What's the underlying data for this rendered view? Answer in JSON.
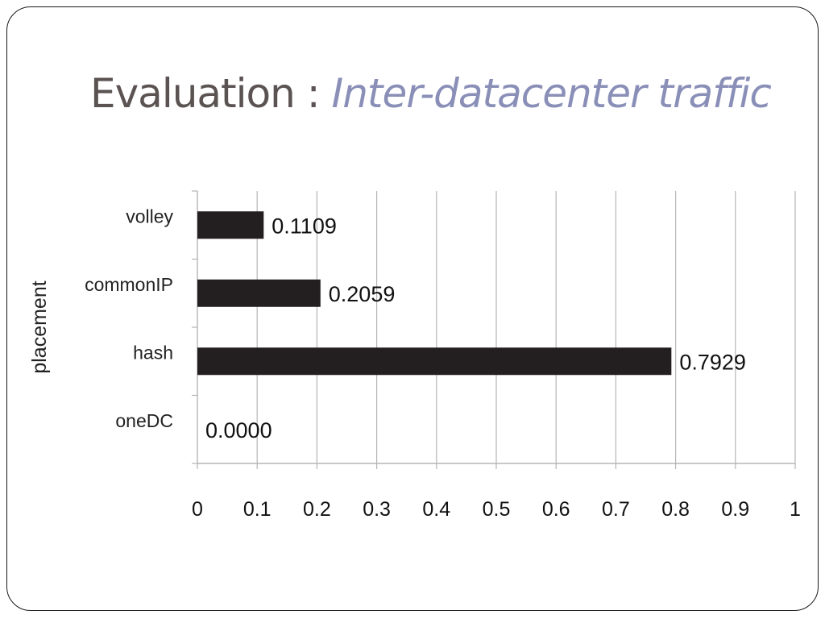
{
  "slide": {
    "title_main": "Evaluation : ",
    "title_sub": "Inter-datacenter traffic"
  },
  "colors": {
    "bar": "#231f20",
    "grid": "#b5b5b5",
    "title_main": "#5a5352",
    "title_sub": "#8a8fb8"
  },
  "chart_data": {
    "type": "bar",
    "orientation": "horizontal",
    "categories": [
      "volley",
      "commonIP",
      "hash",
      "oneDC"
    ],
    "values": [
      0.1109,
      0.2059,
      0.7929,
      0.0
    ],
    "data_labels": [
      "0.1109",
      "0.2059",
      "0.7929",
      "0.0000"
    ],
    "xlabel": "",
    "ylabel": "placement",
    "xlim": [
      0,
      1
    ],
    "xticks": [
      0,
      0.1,
      0.2,
      0.3,
      0.4,
      0.5,
      0.6,
      0.7,
      0.8,
      0.9,
      1
    ],
    "xtick_labels": [
      "0",
      "0.1",
      "0.2",
      "0.3",
      "0.4",
      "0.5",
      "0.6",
      "0.7",
      "0.8",
      "0.9",
      "1"
    ],
    "grid": true,
    "legend": "none"
  }
}
